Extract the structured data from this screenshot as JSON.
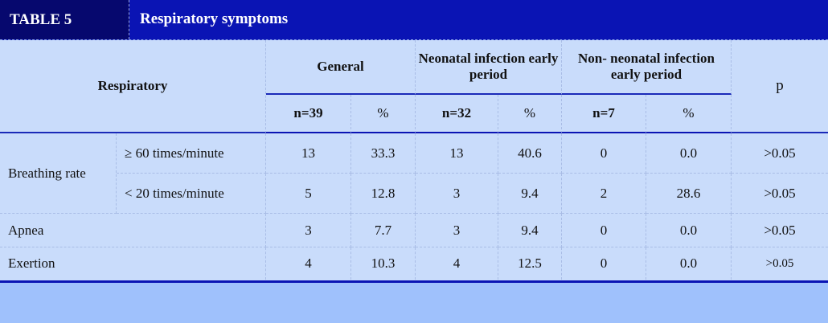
{
  "table": {
    "number": "TABLE 5",
    "title": "Respiratory symptoms"
  },
  "header": {
    "respiratory": "Respiratory",
    "general": "General",
    "neonatal": "Neonatal infection early period",
    "non_neonatal": "Non- neonatal infection early period",
    "p": "p",
    "n_general": "n=39",
    "pct_general": "%",
    "n_neonatal": "n=32",
    "pct_neonatal": "%",
    "n_non_neonatal": "n=7",
    "pct_non_neonatal": "%"
  },
  "rows": {
    "breathing_rate": {
      "label": "Breathing rate",
      "high": {
        "sub": "≥ 60 times/minute",
        "values": [
          "13",
          "33.3",
          "13",
          "40.6",
          "0",
          "0.0",
          ">0.05"
        ]
      },
      "low": {
        "sub": "< 20 times/minute",
        "values": [
          "5",
          "12.8",
          "3",
          "9.4",
          "2",
          "28.6",
          ">0.05"
        ]
      }
    },
    "apnea": {
      "label": "Apnea",
      "values": [
        "3",
        "7.7",
        "3",
        "9.4",
        "0",
        "0.0",
        ">0.05"
      ]
    },
    "exertion": {
      "label": "Exertion",
      "values": [
        "4",
        "10.3",
        "4",
        "12.5",
        "0",
        "0.0",
        ">0.05"
      ]
    }
  }
}
